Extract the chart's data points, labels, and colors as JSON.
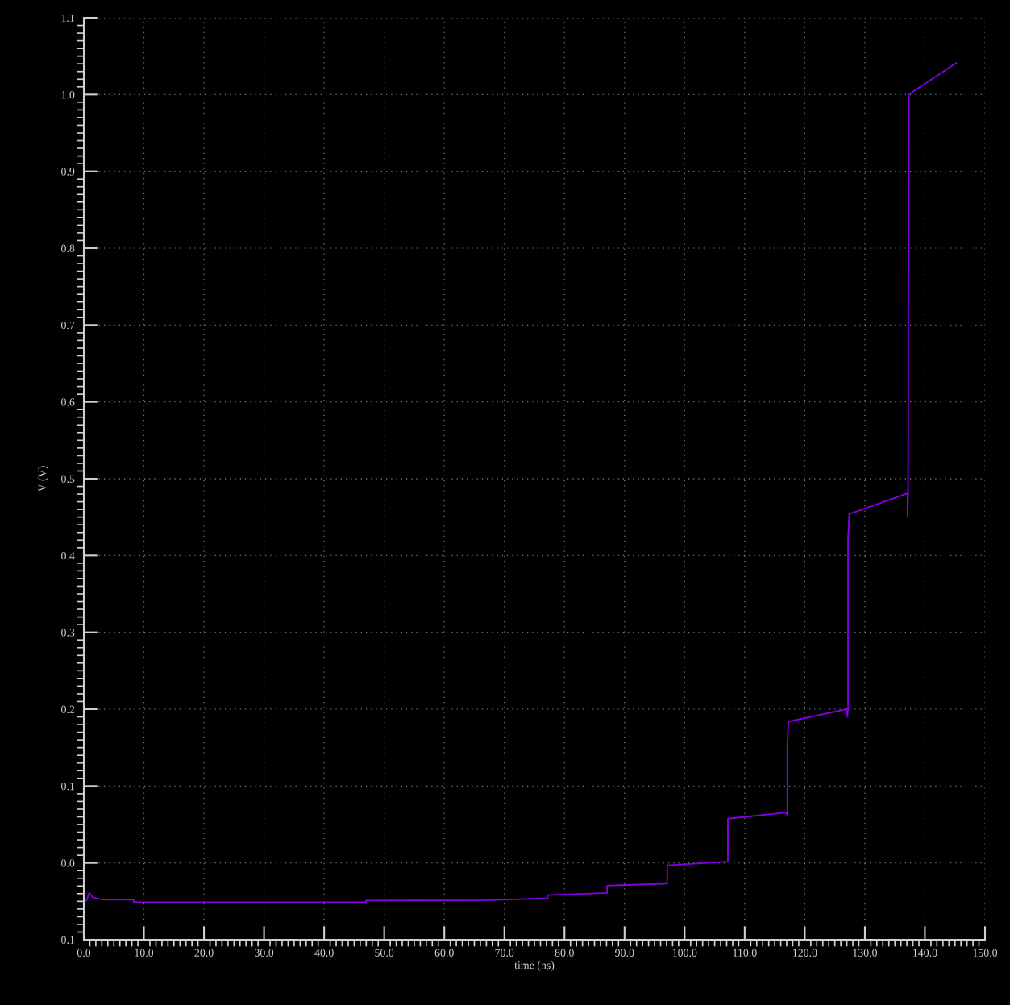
{
  "chart_data": {
    "type": "line",
    "xlabel": "time (ns)",
    "ylabel": "V (V)",
    "series": [
      {
        "color": "#8a00e6",
        "x": [
          0.1,
          0.5,
          0.9,
          1.5,
          2.5,
          3.5,
          8.3,
          8.3,
          47.0,
          47.0,
          66.5,
          77.2,
          77.2,
          87.1,
          87.1,
          97.1,
          97.1,
          107.2,
          107.2,
          116.9,
          117.0,
          117.1,
          117.1,
          117.3,
          127.0,
          127.1,
          127.2,
          127.2,
          127.4,
          137.1,
          137.1,
          137.2,
          137.3,
          145.2
        ],
        "values": [
          -0.05,
          -0.048,
          -0.039,
          -0.045,
          -0.047,
          -0.048,
          -0.048,
          -0.051,
          -0.051,
          -0.049,
          -0.0487,
          -0.046,
          -0.042,
          -0.039,
          -0.0295,
          -0.027,
          -0.003,
          0.0017,
          0.0576,
          0.0657,
          0.063,
          0.064,
          0.155,
          0.184,
          0.2,
          0.19,
          0.2,
          0.42,
          0.454,
          0.481,
          0.451,
          0.481,
          1.0,
          1.041
        ]
      }
    ],
    "xlim": [
      0,
      150
    ],
    "ylim": [
      -0.1,
      1.1
    ],
    "xticks": [
      {
        "value": 0,
        "label": "0.0"
      },
      {
        "value": 10,
        "label": "10.0"
      },
      {
        "value": 20,
        "label": "20.0"
      },
      {
        "value": 30,
        "label": "30.0"
      },
      {
        "value": 40,
        "label": "40.0"
      },
      {
        "value": 50,
        "label": "50.0"
      },
      {
        "value": 60,
        "label": "60.0"
      },
      {
        "value": 70,
        "label": "70.0"
      },
      {
        "value": 80,
        "label": "80.0"
      },
      {
        "value": 90,
        "label": "90.0"
      },
      {
        "value": 100,
        "label": "100.0"
      },
      {
        "value": 110,
        "label": "110.0"
      },
      {
        "value": 120,
        "label": "120.0"
      },
      {
        "value": 130,
        "label": "130.0"
      },
      {
        "value": 140,
        "label": "140.0"
      },
      {
        "value": 150,
        "label": "150.0"
      }
    ],
    "yticks": [
      -0.1,
      {
        "value": 0,
        "label": "0.0"
      },
      0.1,
      0.2,
      0.3,
      0.4,
      0.5,
      0.6,
      0.7,
      0.8,
      0.9,
      {
        "value": 1,
        "label": "1.0"
      },
      1.1
    ],
    "grid": true,
    "marker": "none",
    "line_style": "solid"
  }
}
